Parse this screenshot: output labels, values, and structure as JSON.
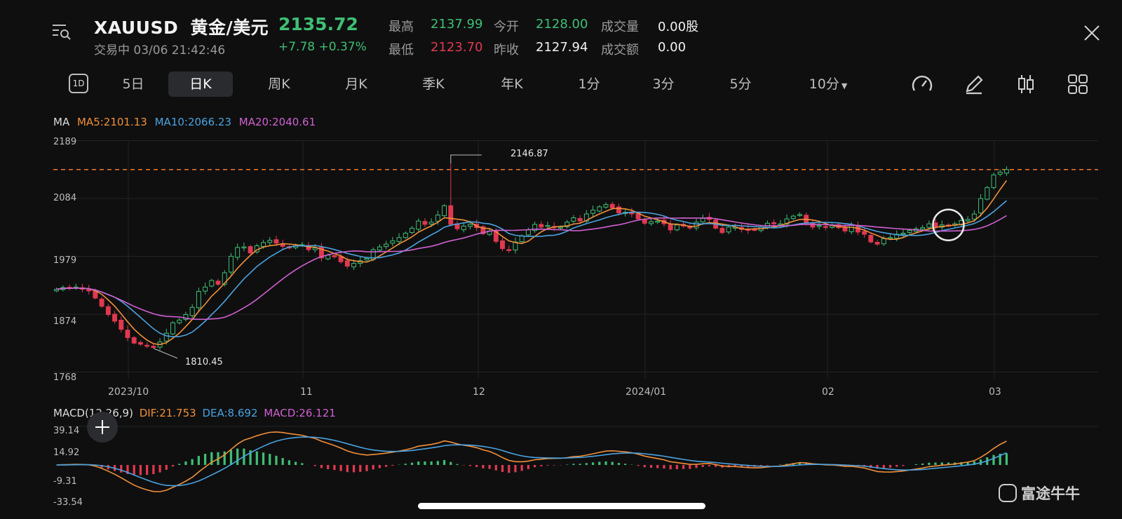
{
  "header": {
    "symbol": "XAUUSD",
    "name": "黄金/美元",
    "price": "2135.72",
    "status": "交易中 03/06 21:42:46",
    "change": "+7.78 +0.37%",
    "stats": [
      {
        "label": "最高",
        "value": "2137.99",
        "color": "green"
      },
      {
        "label": "今开",
        "value": "2128.00",
        "color": "green"
      },
      {
        "label": "成交量",
        "value": "0.00股",
        "color": "white"
      },
      {
        "label": "最低",
        "value": "2123.70",
        "color": "red"
      },
      {
        "label": "昨收",
        "value": "2127.94",
        "color": "white"
      },
      {
        "label": "成交额",
        "value": "0.00",
        "color": "white"
      }
    ]
  },
  "tabs": {
    "period_icon": "1D",
    "items": [
      "5日",
      "日K",
      "周K",
      "月K",
      "季K",
      "年K",
      "1分",
      "3分",
      "5分",
      "10分"
    ],
    "active": "日K",
    "dropdown_item": "10分"
  },
  "toolbar_icons": [
    "gauge-icon",
    "pencil-icon",
    "candlestick-icon",
    "grid-icon"
  ],
  "ma_legend": {
    "title": "MA",
    "ma5": "MA5:2101.13",
    "ma10": "MA10:2066.23",
    "ma20": "MA20:2040.61"
  },
  "macd_legend": {
    "title": "MACD(12,26,9)",
    "dif": "DIF:21.753",
    "dea": "DEA:8.692",
    "macd": "MACD:26.121"
  },
  "watermark": "富途牛牛",
  "colors": {
    "up": "#3fbf74",
    "down": "#e0394f",
    "ma5": "#f0903a",
    "ma10": "#4aa3e0",
    "ma20": "#d060d0",
    "price_line": "#f07a2a"
  },
  "chart_data": [
    {
      "type": "candlestick",
      "yticks": [
        "2189",
        "2084",
        "1979",
        "1874",
        "1768"
      ],
      "ylim": [
        1768,
        2189
      ],
      "xticks": [
        "2023/10",
        "11",
        "12",
        "2024/01",
        "02",
        "03"
      ],
      "current_price": 2135.72,
      "annotations": [
        {
          "label": "2146.87",
          "value": 2146.87,
          "kind": "high"
        },
        {
          "label": "1810.45",
          "value": 1810.45,
          "kind": "low"
        }
      ],
      "close_series": [
        1918,
        1921,
        1920,
        1922,
        1918,
        1915,
        1902,
        1887,
        1872,
        1860,
        1845,
        1830,
        1820,
        1818,
        1815,
        1812,
        1822,
        1838,
        1857,
        1862,
        1872,
        1885,
        1914,
        1922,
        1934,
        1927,
        1948,
        1978,
        1994,
        1995,
        1984,
        1997,
        2003,
        2007,
        2002,
        1996,
        1993,
        1997,
        1999,
        1990,
        1993,
        1975,
        1980,
        1977,
        1968,
        1960,
        1965,
        1970,
        1974,
        1990,
        1995,
        2000,
        2006,
        2012,
        2020,
        2029,
        2042,
        2036,
        2040,
        2053,
        2070,
        2036,
        2028,
        2033,
        2036,
        2030,
        2019,
        2024,
        2005,
        1992,
        1990,
        2004,
        2015,
        2026,
        2036,
        2031,
        2034,
        2030,
        2031,
        2040,
        2048,
        2042,
        2055,
        2062,
        2068,
        2072,
        2066,
        2057,
        2058,
        2055,
        2046,
        2038,
        2041,
        2042,
        2037,
        2026,
        2035,
        2033,
        2030,
        2040,
        2047,
        2045,
        2029,
        2021,
        2031,
        2031,
        2027,
        2025,
        2026,
        2031,
        2038,
        2037,
        2037,
        2046,
        2051,
        2054,
        2038,
        2031,
        2034,
        2031,
        2035,
        2030,
        2024,
        2034,
        2022,
        2018,
        2004,
        2000,
        2010,
        2012,
        2018,
        2020,
        2025,
        2028,
        2030,
        2037,
        2032,
        2035,
        2033,
        2037,
        2043,
        2045,
        2055,
        2083,
        2103,
        2126,
        2131,
        2135.72
      ]
    },
    {
      "type": "macd",
      "yticks": [
        "39.14",
        "14.92",
        "-9.31",
        "-33.54"
      ],
      "ylim": [
        -33.54,
        39.14
      ],
      "dif": 21.753,
      "dea": 8.692,
      "macd": 26.121
    }
  ]
}
